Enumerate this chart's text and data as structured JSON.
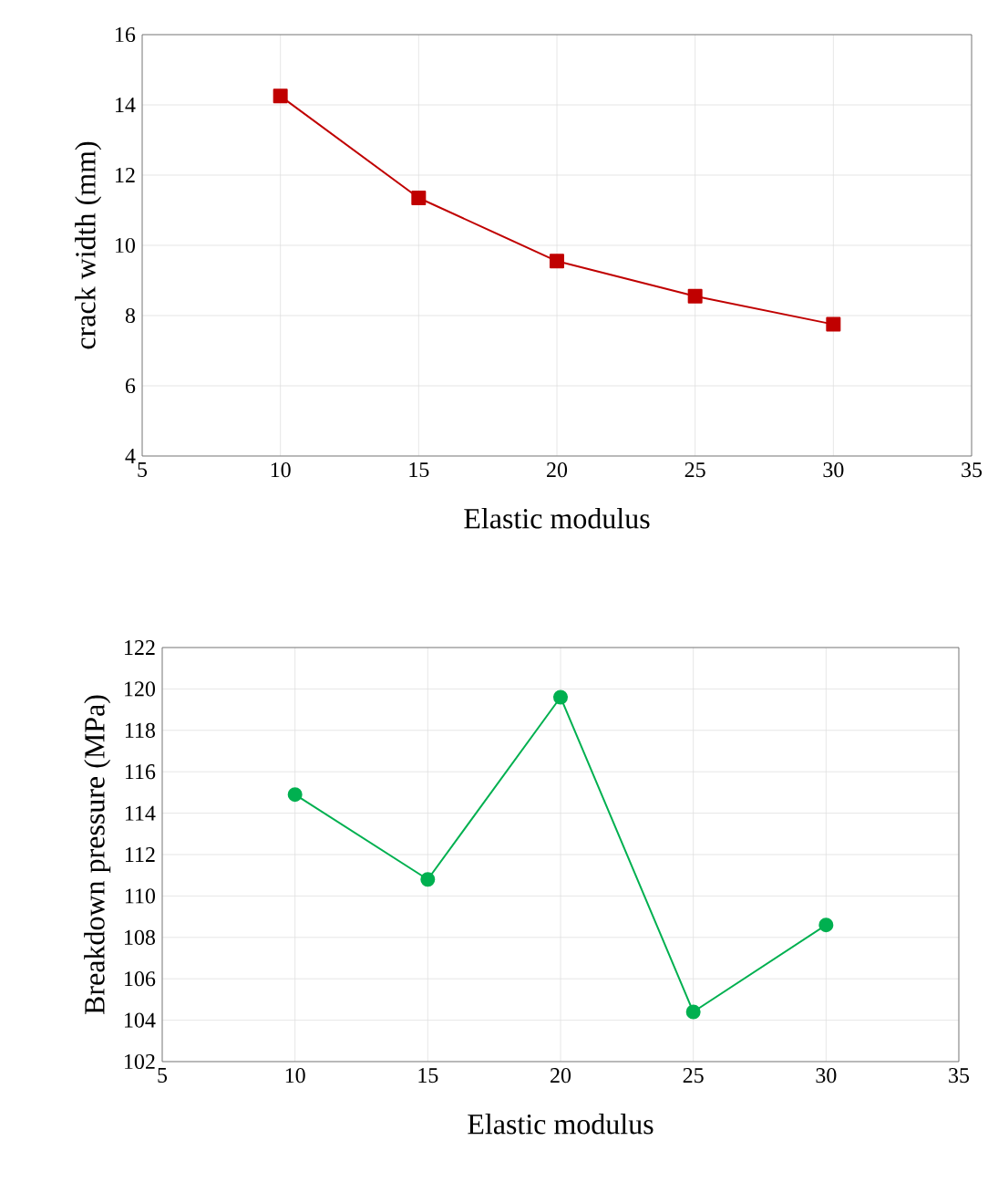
{
  "chart_data": [
    {
      "type": "line",
      "xlabel": "Elastic modulus",
      "ylabel": "crack width (mm)",
      "x": [
        10,
        15,
        20,
        25,
        30
      ],
      "series": [
        {
          "color": "#c00000",
          "values": [
            14.25,
            11.35,
            9.55,
            8.55,
            7.75
          ]
        }
      ],
      "xlim": [
        5,
        35
      ],
      "ylim": [
        4,
        16
      ],
      "xticks": [
        5,
        10,
        15,
        20,
        25,
        30,
        35
      ],
      "yticks": [
        4,
        6,
        8,
        10,
        12,
        14,
        16
      ],
      "grid": true,
      "marker": "square"
    },
    {
      "type": "line",
      "xlabel": "Elastic modulus",
      "ylabel": "Breakdown pressure (MPa)",
      "x": [
        10,
        15,
        20,
        25,
        30
      ],
      "series": [
        {
          "color": "#00b050",
          "values": [
            114.9,
            110.8,
            119.6,
            104.4,
            108.6
          ]
        }
      ],
      "xlim": [
        5,
        35
      ],
      "ylim": [
        102,
        122
      ],
      "xticks": [
        5,
        10,
        15,
        20,
        25,
        30,
        35
      ],
      "yticks": [
        102,
        104,
        106,
        108,
        110,
        112,
        114,
        116,
        118,
        120,
        122
      ],
      "grid": true,
      "marker": "circle"
    }
  ]
}
